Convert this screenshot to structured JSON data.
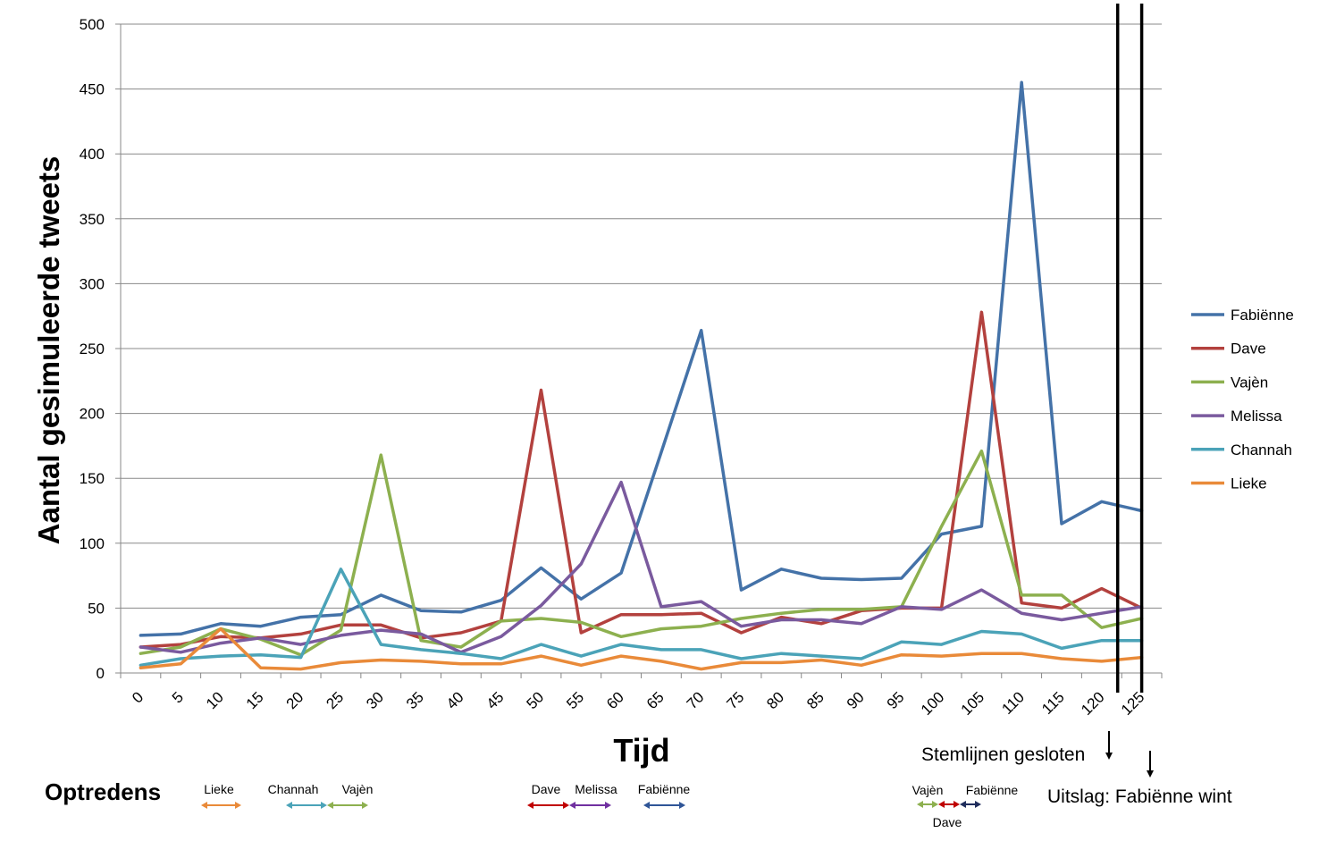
{
  "chart_data": {
    "type": "line",
    "xlabel": "Tijd",
    "ylabel": "Aantal gesimuleerde tweets",
    "ylim": [
      0,
      500
    ],
    "yticks": [
      "0",
      "50",
      "100",
      "150",
      "200",
      "250",
      "300",
      "350",
      "400",
      "450",
      "500"
    ],
    "categories": [
      "0",
      "5",
      "10",
      "15",
      "20",
      "25",
      "30",
      "35",
      "40",
      "45",
      "50",
      "55",
      "60",
      "65",
      "70",
      "75",
      "80",
      "85",
      "90",
      "95",
      "100",
      "105",
      "110",
      "115",
      "120",
      "125"
    ],
    "grid": true,
    "legend_position": "right",
    "series": [
      {
        "name": "Fabiënne",
        "color": "#4472A8",
        "values": [
          29,
          30,
          38,
          36,
          43,
          45,
          60,
          48,
          47,
          56,
          81,
          57,
          77,
          170,
          264,
          64,
          80,
          73,
          72,
          73,
          107,
          113,
          455,
          115,
          132,
          125
        ]
      },
      {
        "name": "Dave",
        "color": "#B3413E",
        "values": [
          20,
          22,
          28,
          27,
          30,
          37,
          37,
          27,
          31,
          40,
          218,
          31,
          45,
          45,
          46,
          31,
          43,
          38,
          48,
          50,
          50,
          278,
          54,
          50,
          65,
          50
        ]
      },
      {
        "name": "Vajèn",
        "color": "#8DB04F",
        "values": [
          15,
          20,
          34,
          26,
          14,
          33,
          168,
          25,
          20,
          40,
          42,
          39,
          28,
          34,
          36,
          42,
          46,
          49,
          49,
          51,
          113,
          171,
          60,
          60,
          35,
          42
        ]
      },
      {
        "name": "Melissa",
        "color": "#7A5A9E",
        "values": [
          20,
          16,
          23,
          27,
          22,
          29,
          33,
          30,
          16,
          28,
          52,
          84,
          147,
          51,
          55,
          36,
          41,
          41,
          38,
          51,
          49,
          64,
          46,
          41,
          46,
          51
        ]
      },
      {
        "name": "Channah",
        "color": "#4BA3B8",
        "values": [
          6,
          11,
          13,
          14,
          12,
          80,
          22,
          18,
          15,
          11,
          22,
          13,
          22,
          18,
          18,
          11,
          15,
          13,
          11,
          24,
          22,
          32,
          30,
          19,
          25,
          25
        ]
      },
      {
        "name": "Lieke",
        "color": "#E98A39",
        "values": [
          4,
          7,
          34,
          4,
          3,
          8,
          10,
          9,
          7,
          7,
          13,
          6,
          13,
          9,
          3,
          8,
          8,
          10,
          6,
          14,
          13,
          15,
          15,
          11,
          9,
          12
        ]
      }
    ],
    "vertical_markers": [
      122,
      125
    ]
  },
  "annotations": {
    "stem_closed": "Stemlijnen gesloten",
    "result": "Uitslag: Fabiënne wint"
  },
  "performances": {
    "title": "Optredens",
    "items": [
      {
        "label": "Lieke",
        "color": "#E98A39"
      },
      {
        "label": "Channah",
        "color": "#4BA3B8"
      },
      {
        "label": "Vajèn",
        "color": "#8DB04F"
      },
      {
        "label": "Dave",
        "color": "#C00000"
      },
      {
        "label": "Melissa",
        "color": "#7030A0"
      },
      {
        "label": "Fabiënne",
        "color": "#2F5597"
      },
      {
        "label": "Vajèn",
        "color": "#8DB04F"
      },
      {
        "label": "Dave",
        "color": "#C00000"
      },
      {
        "label": "Fabiënne",
        "color": "#1F2D5C"
      }
    ]
  }
}
